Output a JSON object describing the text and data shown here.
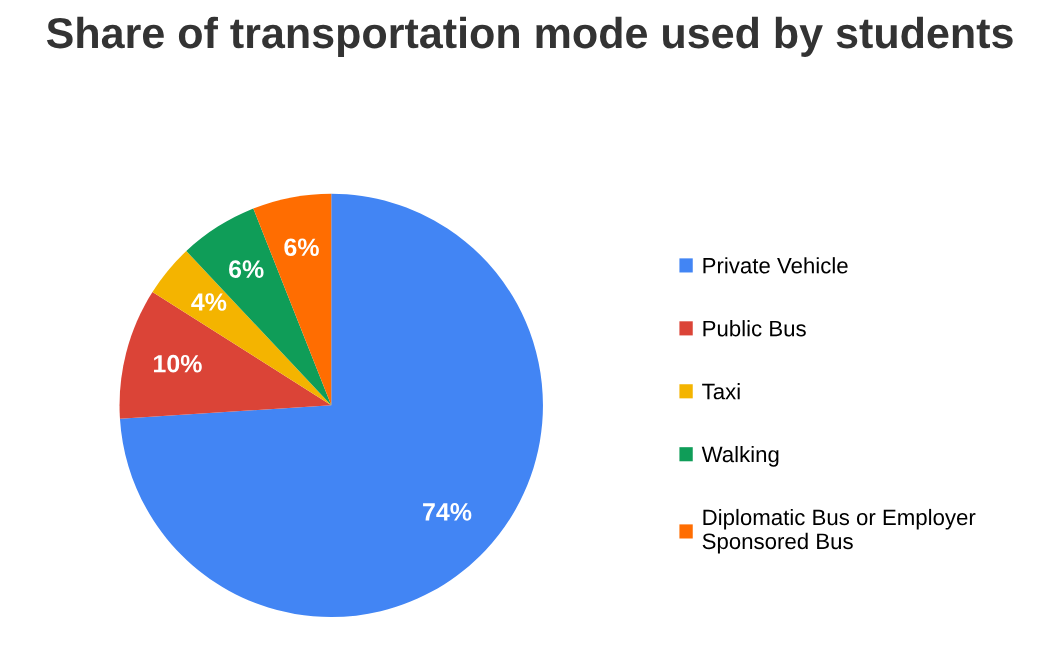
{
  "chart_data": {
    "type": "pie",
    "title": "Share of transportation mode used by students",
    "categories": [
      "Private Vehicle",
      "Public Bus",
      "Taxi",
      "Walking",
      "Diplomatic Bus or Employer Sponsored Bus"
    ],
    "values": [
      74,
      10,
      4,
      6,
      6
    ],
    "colors": [
      "#4285f4",
      "#db4437",
      "#f4b400",
      "#0f9d58",
      "#ff6d01"
    ],
    "value_labels": [
      "74%",
      "10%",
      "4%",
      "6%",
      "6%"
    ],
    "legend": "right"
  }
}
